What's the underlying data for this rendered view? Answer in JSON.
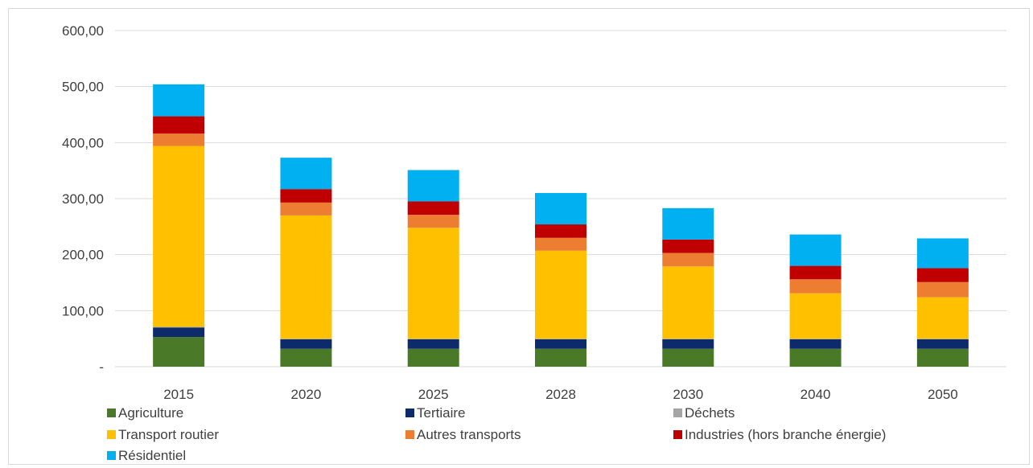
{
  "chart_data": {
    "type": "bar",
    "stacked": true,
    "title": "",
    "xlabel": "",
    "ylabel": "",
    "ylim": [
      0,
      600
    ],
    "y_ticks": [
      {
        "value": 0,
        "label": "-"
      },
      {
        "value": 100,
        "label": "100,00"
      },
      {
        "value": 200,
        "label": "200,00"
      },
      {
        "value": 300,
        "label": "300,00"
      },
      {
        "value": 400,
        "label": "400,00"
      },
      {
        "value": 500,
        "label": "500,00"
      },
      {
        "value": 600,
        "label": "600,00"
      }
    ],
    "grid": true,
    "legend_position": "bottom",
    "categories": [
      "2015",
      "2020",
      "2025",
      "2028",
      "2030",
      "2040",
      "2050"
    ],
    "series": [
      {
        "name": "Agriculture",
        "color": "#4a7a27",
        "values": [
          53,
          32,
          32,
          32,
          32,
          32,
          32
        ]
      },
      {
        "name": "Tertiaire",
        "color": "#0d2a6b",
        "values": [
          17,
          17,
          17,
          17,
          17,
          17,
          17
        ]
      },
      {
        "name": "Déchets",
        "color": "#a5a5a5",
        "values": [
          1,
          1,
          1,
          1,
          1,
          1,
          1
        ]
      },
      {
        "name": "Transport routier",
        "color": "#ffc000",
        "values": [
          323,
          220,
          198,
          157,
          129,
          81,
          74
        ]
      },
      {
        "name": "Autres transports",
        "color": "#ed7d31",
        "values": [
          22,
          23,
          23,
          23,
          24,
          25,
          27
        ]
      },
      {
        "name": "Industries (hors branche énergie)",
        "color": "#c00000",
        "values": [
          31,
          24,
          24,
          24,
          24,
          24,
          25
        ]
      },
      {
        "name": "Résidentiel",
        "color": "#00b0f0",
        "values": [
          57,
          56,
          56,
          56,
          56,
          56,
          53
        ]
      }
    ]
  }
}
